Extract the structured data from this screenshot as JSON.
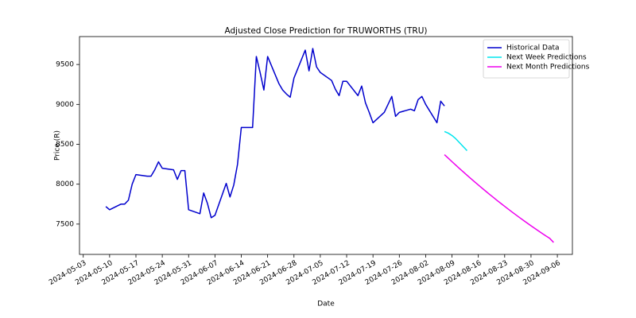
{
  "chart_data": {
    "type": "line",
    "title": "Adjusted Close Prediction for TRUWORTHS (TRU)",
    "xlabel": "Date",
    "ylabel": "Price (R)",
    "series": [
      {
        "name": "Historical Data",
        "color": "#0000cd",
        "x": [
          "2024-05-09",
          "2024-05-10",
          "2024-05-13",
          "2024-05-14",
          "2024-05-15",
          "2024-05-16",
          "2024-05-17",
          "2024-05-20",
          "2024-05-21",
          "2024-05-22",
          "2024-05-23",
          "2024-05-24",
          "2024-05-27",
          "2024-05-28",
          "2024-05-29",
          "2024-05-30",
          "2024-05-31",
          "2024-06-03",
          "2024-06-04",
          "2024-06-05",
          "2024-06-06",
          "2024-06-07",
          "2024-06-10",
          "2024-06-11",
          "2024-06-12",
          "2024-06-13",
          "2024-06-14",
          "2024-06-17",
          "2024-06-18",
          "2024-06-19",
          "2024-06-20",
          "2024-06-21",
          "2024-06-24",
          "2024-06-25",
          "2024-06-26",
          "2024-06-27",
          "2024-06-28",
          "2024-07-01",
          "2024-07-02",
          "2024-07-03",
          "2024-07-04",
          "2024-07-05",
          "2024-07-08",
          "2024-07-09",
          "2024-07-10",
          "2024-07-11",
          "2024-07-12",
          "2024-07-15",
          "2024-07-16",
          "2024-07-17",
          "2024-07-18",
          "2024-07-19",
          "2024-07-22",
          "2024-07-23",
          "2024-07-24",
          "2024-07-25",
          "2024-07-26",
          "2024-07-29",
          "2024-07-30",
          "2024-07-31",
          "2024-08-01",
          "2024-08-02",
          "2024-08-05",
          "2024-08-06",
          "2024-08-07"
        ],
        "values": [
          7720,
          7680,
          7750,
          7750,
          7800,
          8000,
          8120,
          8100,
          8100,
          8180,
          8280,
          8200,
          8180,
          8060,
          8170,
          8170,
          7680,
          7630,
          7890,
          7760,
          7580,
          7610,
          8010,
          7840,
          7990,
          8250,
          8710,
          8710,
          9600,
          9400,
          9180,
          9600,
          9260,
          9180,
          9130,
          9090,
          9330,
          9680,
          9420,
          9700,
          9470,
          9400,
          9300,
          9190,
          9110,
          9290,
          9290,
          9110,
          9230,
          9020,
          8900,
          8770,
          8900,
          9000,
          9100,
          8850,
          8900,
          8940,
          8920,
          9060,
          9100,
          9000,
          8770,
          9040,
          8980
        ]
      },
      {
        "name": "Next Week Predictions",
        "color": "#00e5ee",
        "x": [
          "2024-08-07",
          "2024-08-08",
          "2024-08-09",
          "2024-08-10",
          "2024-08-11",
          "2024-08-12",
          "2024-08-13"
        ],
        "values": [
          8660,
          8640,
          8610,
          8570,
          8520,
          8470,
          8420
        ]
      },
      {
        "name": "Next Month Predictions",
        "color": "#ee00ee",
        "x": [
          "2024-08-07",
          "2024-08-08",
          "2024-08-09",
          "2024-08-10",
          "2024-08-11",
          "2024-08-12",
          "2024-08-13",
          "2024-08-14",
          "2024-08-15",
          "2024-08-16",
          "2024-08-17",
          "2024-08-18",
          "2024-08-19",
          "2024-08-20",
          "2024-08-21",
          "2024-08-22",
          "2024-08-23",
          "2024-08-24",
          "2024-08-25",
          "2024-08-26",
          "2024-08-27",
          "2024-08-28",
          "2024-08-29",
          "2024-08-30",
          "2024-08-31",
          "2024-09-01",
          "2024-09-02",
          "2024-09-03",
          "2024-09-04",
          "2024-09-05"
        ],
        "values": [
          8370,
          8326,
          8282,
          8239,
          8196,
          8154,
          8112,
          8071,
          8030,
          7990,
          7950,
          7911,
          7872,
          7834,
          7796,
          7759,
          7722,
          7686,
          7650,
          7615,
          7580,
          7546,
          7512,
          7479,
          7446,
          7414,
          7382,
          7351,
          7320,
          7270
        ]
      }
    ],
    "xlim": [
      "2024-05-02",
      "2024-09-10"
    ],
    "xticks": [
      "2024-05-03",
      "2024-05-10",
      "2024-05-17",
      "2024-05-24",
      "2024-05-31",
      "2024-06-07",
      "2024-06-14",
      "2024-06-21",
      "2024-06-28",
      "2024-07-05",
      "2024-07-12",
      "2024-07-19",
      "2024-07-26",
      "2024-08-02",
      "2024-08-09",
      "2024-08-16",
      "2024-08-23",
      "2024-08-30",
      "2024-09-06"
    ],
    "ylim": [
      7120,
      9850
    ],
    "yticks": [
      7500,
      8000,
      8500,
      9000,
      9500
    ],
    "legend": "upper right"
  }
}
